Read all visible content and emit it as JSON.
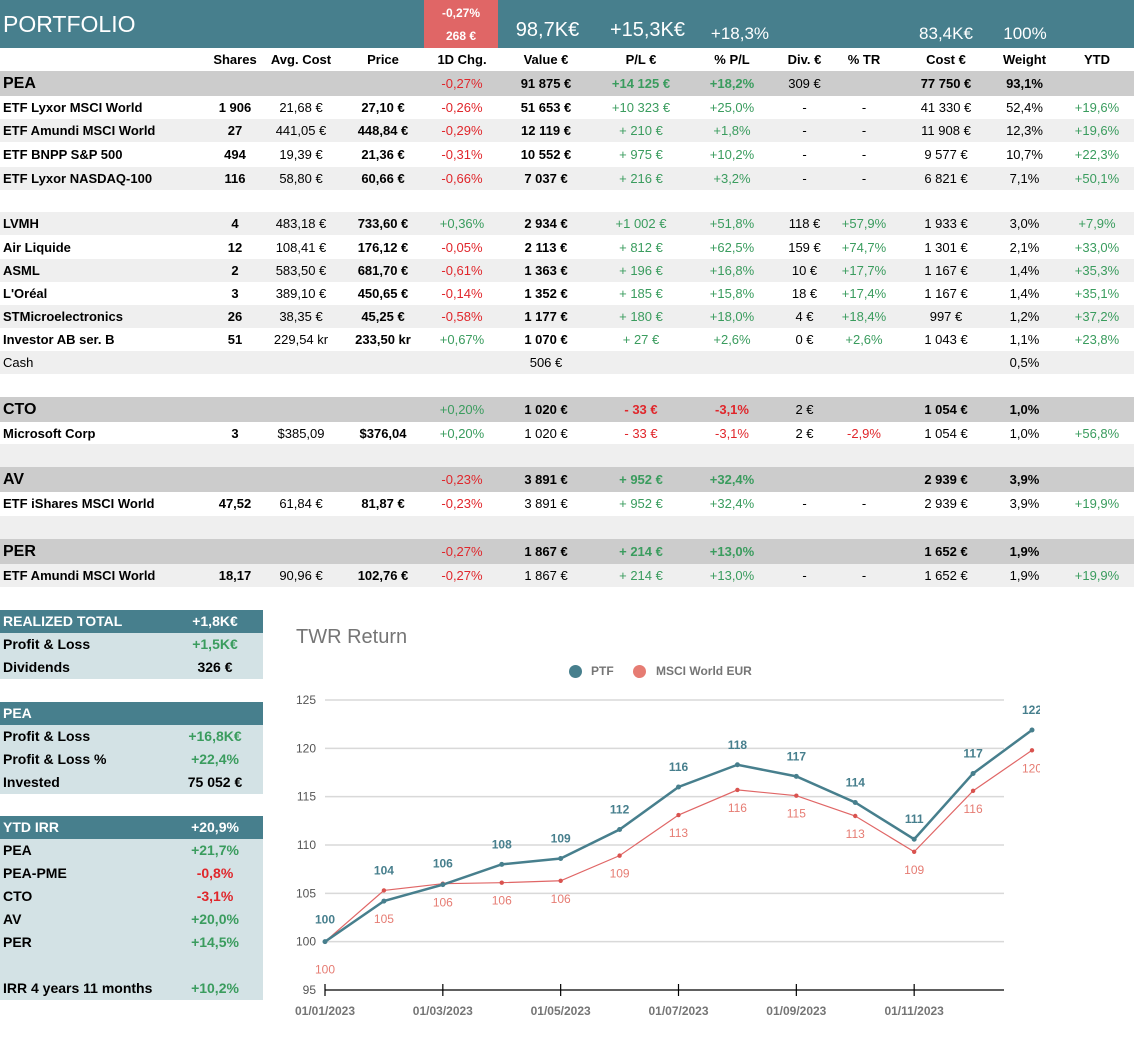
{
  "header": {
    "title": "PORTFOLIO",
    "day_change_pct": "-0,27%",
    "day_change_eur": "268 €",
    "total_value": "98,7K€",
    "total_pl": "+15,3K€",
    "total_pl_pct": "+18,3%",
    "total_cost": "83,4K€",
    "total_weight": "100%"
  },
  "columns": {
    "shares": "Shares",
    "avg_cost": "Avg. Cost",
    "price": "Price",
    "chg": "1D Chg.",
    "value": "Value €",
    "pl": "P/L €",
    "pct_pl": "% P/L",
    "div": "Div. €",
    "tr": "% TR",
    "cost": "Cost €",
    "weight": "Weight",
    "ytd": "YTD"
  },
  "groups": {
    "pea": {
      "name": "PEA",
      "chg": "-0,27%",
      "value": "91 875 €",
      "pl": "+14 125 €",
      "pct_pl": "+18,2%",
      "div": "309 €",
      "cost": "77 750 €",
      "weight": "93,1%"
    },
    "cto": {
      "name": "CTO",
      "chg": "+0,20%",
      "value": "1 020 €",
      "pl": "- 33 €",
      "pct_pl": "-3,1%",
      "div": "2 €",
      "cost": "1 054 €",
      "weight": "1,0%"
    },
    "av": {
      "name": "AV",
      "chg": "-0,23%",
      "value": "3 891 €",
      "pl": "+ 952 €",
      "pct_pl": "+32,4%",
      "cost": "2 939 €",
      "weight": "3,9%"
    },
    "per": {
      "name": "PER",
      "chg": "-0,27%",
      "value": "1 867 €",
      "pl": "+ 214 €",
      "pct_pl": "+13,0%",
      "cost": "1 652 €",
      "weight": "1,9%"
    }
  },
  "rows": [
    {
      "name": "ETF Lyxor MSCI World",
      "shares": "1 906",
      "avg": "21,68 €",
      "price": "27,10 €",
      "chg": "-0,26%",
      "value": "51 653 €",
      "pl": "+10 323 €",
      "ppl": "+25,0%",
      "div": "-",
      "tr": "-",
      "cost": "41 330 €",
      "weight": "52,4%",
      "ytd": "+19,6%"
    },
    {
      "name": "ETF Amundi MSCI World",
      "shares": "27",
      "avg": "441,05 €",
      "price": "448,84 €",
      "chg": "-0,29%",
      "value": "12 119 €",
      "pl": "+ 210 €",
      "ppl": "+1,8%",
      "div": "-",
      "tr": "-",
      "cost": "11 908 €",
      "weight": "12,3%",
      "ytd": "+19,6%"
    },
    {
      "name": "ETF BNPP S&P 500",
      "shares": "494",
      "avg": "19,39 €",
      "price": "21,36 €",
      "chg": "-0,31%",
      "value": "10 552 €",
      "pl": "+ 975 €",
      "ppl": "+10,2%",
      "div": "-",
      "tr": "-",
      "cost": "9 577 €",
      "weight": "10,7%",
      "ytd": "+22,3%"
    },
    {
      "name": "ETF Lyxor NASDAQ-100",
      "shares": "116",
      "avg": "58,80 €",
      "price": "60,66 €",
      "chg": "-0,66%",
      "value": "7 037 €",
      "pl": "+ 216 €",
      "ppl": "+3,2%",
      "div": "-",
      "tr": "-",
      "cost": "6 821 €",
      "weight": "7,1%",
      "ytd": "+50,1%"
    },
    {
      "name": "LVMH",
      "shares": "4",
      "avg": "483,18 €",
      "price": "733,60 €",
      "chg": "+0,36%",
      "value": "2 934 €",
      "pl": "+1 002 €",
      "ppl": "+51,8%",
      "div": "118 €",
      "tr": "+57,9%",
      "cost": "1 933 €",
      "weight": "3,0%",
      "ytd": "+7,9%"
    },
    {
      "name": "Air Liquide",
      "shares": "12",
      "avg": "108,41 €",
      "price": "176,12 €",
      "chg": "-0,05%",
      "value": "2 113 €",
      "pl": "+ 812 €",
      "ppl": "+62,5%",
      "div": "159 €",
      "tr": "+74,7%",
      "cost": "1 301 €",
      "weight": "2,1%",
      "ytd": "+33,0%"
    },
    {
      "name": "ASML",
      "shares": "2",
      "avg": "583,50 €",
      "price": "681,70 €",
      "chg": "-0,61%",
      "value": "1 363 €",
      "pl": "+ 196 €",
      "ppl": "+16,8%",
      "div": "10 €",
      "tr": "+17,7%",
      "cost": "1 167 €",
      "weight": "1,4%",
      "ytd": "+35,3%"
    },
    {
      "name": "L'Oréal",
      "shares": "3",
      "avg": "389,10 €",
      "price": "450,65 €",
      "chg": "-0,14%",
      "value": "1 352 €",
      "pl": "+ 185 €",
      "ppl": "+15,8%",
      "div": "18 €",
      "tr": "+17,4%",
      "cost": "1 167 €",
      "weight": "1,4%",
      "ytd": "+35,1%"
    },
    {
      "name": "STMicroelectronics",
      "shares": "26",
      "avg": "38,35 €",
      "price": "45,25 €",
      "chg": "-0,58%",
      "value": "1 177 €",
      "pl": "+ 180 €",
      "ppl": "+18,0%",
      "div": "4 €",
      "tr": "+18,4%",
      "cost": "997 €",
      "weight": "1,2%",
      "ytd": "+37,2%"
    },
    {
      "name": "Investor AB ser. B",
      "shares": "51",
      "avg": "229,54 kr",
      "price": "233,50 kr",
      "chg": "+0,67%",
      "value": "1 070 €",
      "pl": "+ 27 €",
      "ppl": "+2,6%",
      "div": "0 €",
      "tr": "+2,6%",
      "cost": "1 043 €",
      "weight": "1,1%",
      "ytd": "+23,8%"
    },
    {
      "name": "Cash",
      "value": "506 €",
      "weight": "0,5%"
    },
    {
      "name": "Microsoft Corp",
      "shares": "3",
      "avg": "$385,09",
      "price": "$376,04",
      "chg": "+0,20%",
      "value": "1 020 €",
      "pl": "- 33 €",
      "ppl": "-3,1%",
      "div": "2 €",
      "tr": "-2,9%",
      "cost": "1 054 €",
      "weight": "1,0%",
      "ytd": "+56,8%"
    },
    {
      "name": "ETF iShares MSCI World",
      "shares": "47,52",
      "avg": "61,84 €",
      "price": "81,87 €",
      "chg": "-0,23%",
      "value": "3 891 €",
      "pl": "+ 952 €",
      "ppl": "+32,4%",
      "div": "-",
      "tr": "-",
      "cost": "2 939 €",
      "weight": "3,9%",
      "ytd": "+19,9%"
    },
    {
      "name": "ETF Amundi MSCI World",
      "shares": "18,17",
      "avg": "90,96 €",
      "price": "102,76 €",
      "chg": "-0,27%",
      "value": "1 867 €",
      "pl": "+ 214 €",
      "ppl": "+13,0%",
      "div": "-",
      "tr": "-",
      "cost": "1 652 €",
      "weight": "1,9%",
      "ytd": "+19,9%"
    }
  ],
  "realized": {
    "title": "REALIZED TOTAL",
    "total": "+1,8K€",
    "pl_label": "Profit & Loss",
    "pl": "+1,5K€",
    "div_label": "Dividends",
    "div": "326 €"
  },
  "pea_panel": {
    "title": "PEA",
    "pl_label": "Profit & Loss",
    "pl": "+16,8K€",
    "plpct_label": "Profit & Loss %",
    "plpct": "+22,4%",
    "inv_label": "Invested",
    "inv": "75 052 €"
  },
  "irr": {
    "title": "YTD IRR",
    "total": "+20,9%",
    "items": [
      {
        "label": "PEA",
        "value": "+21,7%"
      },
      {
        "label": "PEA-PME",
        "value": "-0,8%"
      },
      {
        "label": "CTO",
        "value": "-3,1%"
      },
      {
        "label": "AV",
        "value": "+20,0%"
      },
      {
        "label": "PER",
        "value": "+14,5%"
      }
    ],
    "long_label": "IRR 4 years 11 months",
    "long_value": "+10,2%"
  },
  "colors": {
    "teal": "#477f8d",
    "salmon": "#e06666",
    "green": "#3a9c5e",
    "red": "#e0262b"
  },
  "chart_data": {
    "type": "line",
    "title": "TWR Return",
    "xlabel": "",
    "ylabel": "",
    "ylim": [
      95,
      125
    ],
    "yticks": [
      95,
      100,
      105,
      110,
      115,
      120,
      125
    ],
    "xtick_labels": [
      "01/01/2023",
      "01/03/2023",
      "01/05/2023",
      "01/07/2023",
      "01/09/2023",
      "01/11/2023"
    ],
    "x": [
      "01/01/2023",
      "01/02/2023",
      "01/03/2023",
      "01/04/2023",
      "01/05/2023",
      "01/06/2023",
      "01/07/2023",
      "01/08/2023",
      "01/09/2023",
      "01/10/2023",
      "01/11/2023",
      "01/12/2023",
      "31/12/2023"
    ],
    "legend_position": "top-center",
    "grid": true,
    "series": [
      {
        "name": "PTF",
        "color": "#477f8d",
        "values": [
          100,
          104.2,
          105.9,
          108.0,
          108.6,
          111.6,
          116.0,
          118.3,
          117.1,
          114.4,
          110.6,
          117.4,
          121.9
        ],
        "labels": [
          "100",
          "104",
          "106",
          "108",
          "109",
          "112",
          "116",
          "118",
          "117",
          "114",
          "111",
          "117",
          "122"
        ]
      },
      {
        "name": "MSCI World EUR",
        "color": "#e06666",
        "values": [
          100,
          105.3,
          106.0,
          106.1,
          106.3,
          108.9,
          113.1,
          115.7,
          115.1,
          113.0,
          109.3,
          115.6,
          119.8
        ],
        "labels": [
          "100",
          "105",
          "106",
          "106",
          "106",
          "109",
          "113",
          "116",
          "115",
          "113",
          "109",
          "116",
          "120"
        ]
      }
    ]
  }
}
